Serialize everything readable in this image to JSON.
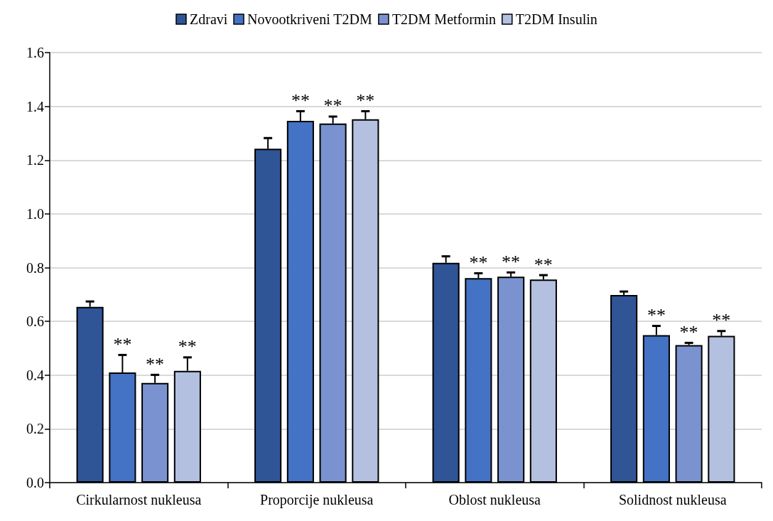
{
  "chart_data": {
    "type": "bar",
    "categories": [
      "Cirkularnost nukleusa",
      "Proporcije nukleusa",
      "Oblost nukleusa",
      "Solidnost nukleusa"
    ],
    "series": [
      {
        "name": "Zdravi",
        "color": "#2f5597",
        "values": [
          0.654,
          1.242,
          0.818,
          0.698
        ],
        "errors": [
          [
            0.654,
            0.674
          ],
          [
            1.242,
            1.282
          ],
          [
            0.818,
            0.842
          ],
          [
            0.698,
            0.711
          ]
        ],
        "value_labels": [
          null,
          null,
          null,
          null
        ]
      },
      {
        "name": "Novootkriveni T2DM",
        "color": "#4472c4",
        "values": [
          0.41,
          1.346,
          0.761,
          0.549
        ],
        "errors": [
          [
            0.41,
            0.475
          ],
          [
            1.346,
            1.382
          ],
          [
            0.761,
            0.779
          ],
          [
            0.549,
            0.583
          ]
        ],
        "value_labels": [
          "**",
          "**",
          "**",
          "**"
        ]
      },
      {
        "name": "T2DM Metformin",
        "color": "#7a93d0",
        "values": [
          0.371,
          1.336,
          0.766,
          0.512
        ],
        "errors": [
          [
            0.371,
            0.401
          ],
          [
            1.336,
            1.362
          ],
          [
            0.766,
            0.782
          ],
          [
            0.512,
            0.52
          ]
        ],
        "value_labels": [
          "**",
          "**",
          "**",
          "**"
        ]
      },
      {
        "name": "T2DM Insulin",
        "color": "#b4c0e0",
        "values": [
          0.416,
          1.352,
          0.756,
          0.546
        ],
        "errors": [
          [
            0.416,
            0.466
          ],
          [
            1.352,
            1.382
          ],
          [
            0.756,
            0.772
          ],
          [
            0.546,
            0.564
          ]
        ],
        "value_labels": [
          "**",
          "**",
          "**",
          "**"
        ]
      }
    ],
    "ylim": [
      0,
      1.6
    ],
    "yticks": [
      {
        "value": 0,
        "label": "0.0"
      },
      {
        "value": 0.2,
        "label": "0.2"
      },
      {
        "value": 0.4,
        "label": "0.4"
      },
      {
        "value": 0.6,
        "label": "0.6"
      },
      {
        "value": 0.8,
        "label": "0.8"
      },
      {
        "value": 1,
        "label": "1.0"
      },
      {
        "value": 1.2,
        "label": "1.2"
      },
      {
        "value": 1.4,
        "label": "1.4"
      },
      {
        "value": 1.6,
        "label": "1.6"
      }
    ],
    "grid": "y",
    "legend": "top"
  }
}
